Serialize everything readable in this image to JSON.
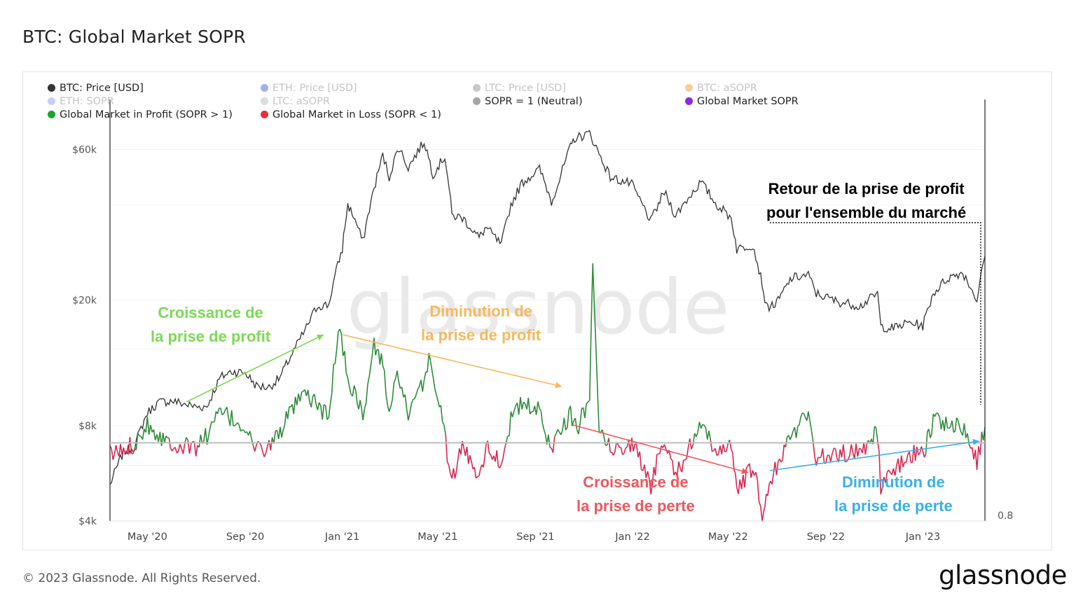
{
  "title": "BTC: Global Market SOPR",
  "footer": {
    "copyright": "© 2023 Glassnode. All Rights Reserved.",
    "brand": "glassnode",
    "watermark": "glassnode"
  },
  "legend": [
    {
      "label": "BTC: Price [USD]",
      "color": "#333333",
      "active": true
    },
    {
      "label": "ETH: Price [USD]",
      "color": "#9fb0f0",
      "active": false
    },
    {
      "label": "LTC: Price [USD]",
      "color": "#c8c8c8",
      "active": false
    },
    {
      "label": "BTC: aSOPR",
      "color": "#f6cba0",
      "active": false
    },
    {
      "label": "ETH: SOPR",
      "color": "#c9cdf2",
      "active": false
    },
    {
      "label": "LTC: aSOPR",
      "color": "#dddddd",
      "active": false
    },
    {
      "label": "SOPR = 1 (Neutral)",
      "color": "#a6a6a6",
      "active": true
    },
    {
      "label": "Global Market SOPR",
      "color": "#8a2be2",
      "active": true
    },
    {
      "label": "Global Market in Profit (SOPR > 1)",
      "color": "#1aa52e",
      "active": true
    },
    {
      "label": "Global Market in Loss (SOPR < 1)",
      "color": "#e8303a",
      "active": true
    }
  ],
  "annotations": {
    "profit_growth": {
      "line1": "Croissance de",
      "line2": "la prise de profit",
      "color": "#7ed957"
    },
    "profit_decline": {
      "line1": "Diminution de",
      "line2": "la prise de profit",
      "color": "#f7b85c"
    },
    "loss_growth": {
      "line1": "Croissance de",
      "line2": "la prise de perte",
      "color": "#f0575e"
    },
    "loss_decline": {
      "line1": "Diminution de",
      "line2": "la prise de perte",
      "color": "#3bb0e8"
    },
    "return_profit": {
      "line1": "Retour de la prise de profit",
      "line2": "pour l'ensemble du marché",
      "color": "#000000"
    }
  },
  "chart_data": {
    "type": "line",
    "x_ticks": [
      "May '20",
      "Sep '20",
      "Jan '21",
      "May '21",
      "Sep '21",
      "Jan '22",
      "May '22",
      "Sep '22",
      "Jan '23"
    ],
    "y_left": {
      "scale": "log",
      "tick_labels": [
        "$4k",
        "$8k",
        "$20k",
        "$60k"
      ],
      "tick_values": [
        4000,
        8000,
        20000,
        60000
      ],
      "range": [
        4000,
        69000
      ]
    },
    "y_right": {
      "tick_labels": [
        "0.8"
      ],
      "tick_values": [
        0.8
      ],
      "range": [
        0.8,
        1.8
      ]
    },
    "x_range": [
      "2020-03-15",
      "2023-03-20"
    ],
    "neutral_line": 1.0,
    "series": [
      {
        "name": "BTC: Price [USD]",
        "axis": "left",
        "color": "#333333",
        "points": [
          [
            "2020-03-15",
            5200
          ],
          [
            "2020-04-01",
            6600
          ],
          [
            "2020-04-15",
            6900
          ],
          [
            "2020-05-01",
            8800
          ],
          [
            "2020-05-15",
            9500
          ],
          [
            "2020-06-01",
            9600
          ],
          [
            "2020-06-15",
            9400
          ],
          [
            "2020-07-01",
            9200
          ],
          [
            "2020-07-15",
            9200
          ],
          [
            "2020-08-01",
            11400
          ],
          [
            "2020-08-15",
            11900
          ],
          [
            "2020-09-01",
            11800
          ],
          [
            "2020-09-15",
            10700
          ],
          [
            "2020-10-01",
            10600
          ],
          [
            "2020-10-15",
            11400
          ],
          [
            "2020-11-01",
            13800
          ],
          [
            "2020-11-15",
            16000
          ],
          [
            "2020-12-01",
            19200
          ],
          [
            "2020-12-15",
            19300
          ],
          [
            "2021-01-01",
            29000
          ],
          [
            "2021-01-08",
            40000
          ],
          [
            "2021-01-15",
            37000
          ],
          [
            "2021-01-27",
            30500
          ],
          [
            "2021-02-10",
            45000
          ],
          [
            "2021-02-21",
            57500
          ],
          [
            "2021-03-01",
            49000
          ],
          [
            "2021-03-13",
            61000
          ],
          [
            "2021-03-25",
            52500
          ],
          [
            "2021-04-14",
            63500
          ],
          [
            "2021-04-25",
            50000
          ],
          [
            "2021-05-10",
            57000
          ],
          [
            "2021-05-19",
            37000
          ],
          [
            "2021-06-01",
            36500
          ],
          [
            "2021-06-22",
            31500
          ],
          [
            "2021-07-01",
            34000
          ],
          [
            "2021-07-20",
            29800
          ],
          [
            "2021-08-01",
            40000
          ],
          [
            "2021-08-15",
            47000
          ],
          [
            "2021-09-06",
            52000
          ],
          [
            "2021-09-21",
            41000
          ],
          [
            "2021-10-01",
            48000
          ],
          [
            "2021-10-15",
            61000
          ],
          [
            "2021-10-20",
            65000
          ],
          [
            "2021-11-08",
            67500
          ],
          [
            "2021-11-20",
            58000
          ],
          [
            "2021-12-04",
            49000
          ],
          [
            "2021-12-31",
            46500
          ],
          [
            "2022-01-10",
            41500
          ],
          [
            "2022-01-24",
            35500
          ],
          [
            "2022-02-10",
            44000
          ],
          [
            "2022-02-24",
            37000
          ],
          [
            "2022-03-28",
            47300
          ],
          [
            "2022-04-15",
            40500
          ],
          [
            "2022-05-05",
            36500
          ],
          [
            "2022-05-12",
            29000
          ],
          [
            "2022-06-01",
            30000
          ],
          [
            "2022-06-13",
            22500
          ],
          [
            "2022-06-18",
            19000
          ],
          [
            "2022-07-01",
            19500
          ],
          [
            "2022-07-20",
            23500
          ],
          [
            "2022-08-10",
            24000
          ],
          [
            "2022-08-20",
            21000
          ],
          [
            "2022-09-15",
            19800
          ],
          [
            "2022-10-15",
            19200
          ],
          [
            "2022-11-05",
            21000
          ],
          [
            "2022-11-09",
            16500
          ],
          [
            "2022-11-25",
            16300
          ],
          [
            "2022-12-15",
            17000
          ],
          [
            "2023-01-01",
            16600
          ],
          [
            "2023-01-14",
            21000
          ],
          [
            "2023-02-01",
            23500
          ],
          [
            "2023-02-20",
            24500
          ],
          [
            "2023-03-10",
            20000
          ],
          [
            "2023-03-20",
            27500
          ]
        ]
      },
      {
        "name": "Global Market SOPR",
        "axis": "right",
        "color_profit": "#2e8b3a",
        "color_loss": "#d9254f",
        "points": [
          [
            "2020-03-15",
            0.97
          ],
          [
            "2020-04-01",
            0.98
          ],
          [
            "2020-04-15",
            1.0
          ],
          [
            "2020-05-01",
            1.05
          ],
          [
            "2020-05-15",
            1.02
          ],
          [
            "2020-06-01",
            1.0
          ],
          [
            "2020-06-15",
            0.99
          ],
          [
            "2020-07-01",
            0.99
          ],
          [
            "2020-07-15",
            1.02
          ],
          [
            "2020-08-01",
            1.08
          ],
          [
            "2020-08-15",
            1.06
          ],
          [
            "2020-09-01",
            1.04
          ],
          [
            "2020-09-15",
            0.98
          ],
          [
            "2020-10-01",
            0.99
          ],
          [
            "2020-10-15",
            1.03
          ],
          [
            "2020-11-01",
            1.09
          ],
          [
            "2020-11-15",
            1.12
          ],
          [
            "2020-12-01",
            1.1
          ],
          [
            "2020-12-15",
            1.06
          ],
          [
            "2020-12-27",
            1.3
          ],
          [
            "2021-01-10",
            1.15
          ],
          [
            "2021-01-20",
            1.12
          ],
          [
            "2021-01-27",
            1.06
          ],
          [
            "2021-02-10",
            1.25
          ],
          [
            "2021-02-21",
            1.2
          ],
          [
            "2021-03-01",
            1.08
          ],
          [
            "2021-03-13",
            1.18
          ],
          [
            "2021-03-25",
            1.06
          ],
          [
            "2021-04-14",
            1.16
          ],
          [
            "2021-04-20",
            1.22
          ],
          [
            "2021-05-05",
            1.08
          ],
          [
            "2021-05-19",
            0.9
          ],
          [
            "2021-06-01",
            0.99
          ],
          [
            "2021-06-22",
            0.92
          ],
          [
            "2021-07-01",
            0.99
          ],
          [
            "2021-07-20",
            0.95
          ],
          [
            "2021-08-01",
            1.06
          ],
          [
            "2021-08-15",
            1.1
          ],
          [
            "2021-09-06",
            1.08
          ],
          [
            "2021-09-21",
            0.98
          ],
          [
            "2021-10-01",
            1.04
          ],
          [
            "2021-10-15",
            1.07
          ],
          [
            "2021-10-25",
            1.04
          ],
          [
            "2021-11-08",
            1.12
          ],
          [
            "2021-11-12",
            1.46
          ],
          [
            "2021-11-20",
            1.05
          ],
          [
            "2021-12-04",
            0.98
          ],
          [
            "2021-12-31",
            1.0
          ],
          [
            "2022-01-10",
            0.96
          ],
          [
            "2022-01-24",
            0.89
          ],
          [
            "2022-02-10",
            1.02
          ],
          [
            "2022-02-24",
            0.92
          ],
          [
            "2022-03-28",
            1.04
          ],
          [
            "2022-04-15",
            0.98
          ],
          [
            "2022-05-05",
            1.0
          ],
          [
            "2022-05-12",
            0.87
          ],
          [
            "2022-06-01",
            0.94
          ],
          [
            "2022-06-13",
            0.82
          ],
          [
            "2022-06-18",
            0.86
          ],
          [
            "2022-07-01",
            0.94
          ],
          [
            "2022-07-20",
            1.02
          ],
          [
            "2022-08-10",
            1.08
          ],
          [
            "2022-08-20",
            0.96
          ],
          [
            "2022-09-15",
            0.97
          ],
          [
            "2022-10-15",
            0.98
          ],
          [
            "2022-11-05",
            1.03
          ],
          [
            "2022-11-09",
            0.88
          ],
          [
            "2022-11-25",
            0.93
          ],
          [
            "2022-12-15",
            0.97
          ],
          [
            "2023-01-01",
            0.97
          ],
          [
            "2023-01-14",
            1.06
          ],
          [
            "2023-02-01",
            1.05
          ],
          [
            "2023-02-20",
            1.04
          ],
          [
            "2023-03-10",
            0.95
          ],
          [
            "2023-03-20",
            1.04
          ]
        ]
      }
    ]
  }
}
